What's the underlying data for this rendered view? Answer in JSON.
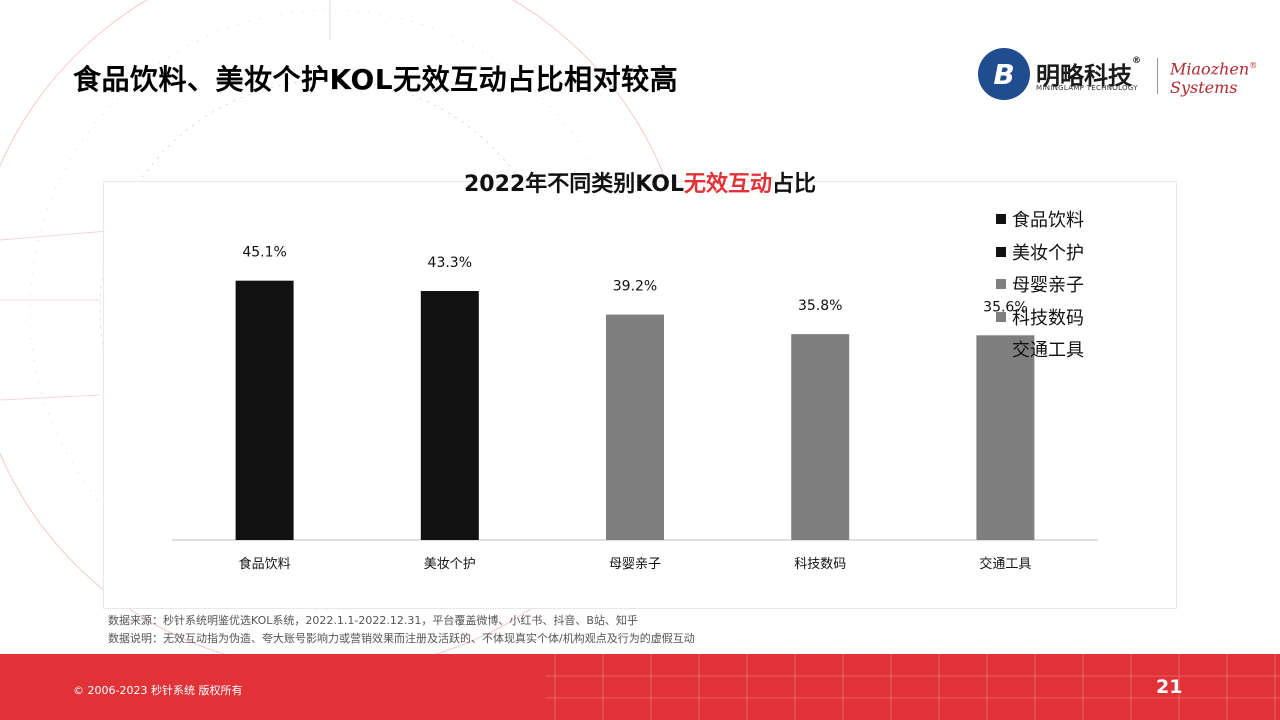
{
  "page": {
    "title": "食品饮料、美妆个护KOL无效互动占比相对较高",
    "page_number": "21",
    "copyright": "© 2006-2023 秒针系统 版权所有"
  },
  "logo": {
    "mark": "B",
    "cn_name": "明略科技",
    "en_name": "MININGLAMP TECHNOLOGY",
    "partner_line1": "Miaozhen",
    "partner_line2": "Systems"
  },
  "chart_title": {
    "prefix": "2022年不同类别KOL",
    "highlight": "无效互动",
    "suffix": "占比",
    "highlight_color": "#e03237"
  },
  "chart_data": {
    "type": "bar",
    "title": "2022年不同类别KOL无效互动占比",
    "categories": [
      "食品饮料",
      "美妆个护",
      "母婴亲子",
      "科技数码",
      "交通工具"
    ],
    "values": [
      45.1,
      43.3,
      39.2,
      35.8,
      35.6
    ],
    "value_labels": [
      "45.1%",
      "43.3%",
      "39.2%",
      "35.8%",
      "35.6%"
    ],
    "colors": [
      "#111111",
      "#111111",
      "#7f7f7f",
      "#7f7f7f",
      "#7f7f7f"
    ],
    "ylim": [
      0,
      60
    ],
    "grid": false,
    "legend_position": "top-right",
    "legend": [
      {
        "label": "食品饮料",
        "color": "#111111"
      },
      {
        "label": "美妆个护",
        "color": "#111111"
      },
      {
        "label": "母婴亲子",
        "color": "#7f7f7f"
      },
      {
        "label": "科技数码",
        "color": "#7f7f7f"
      },
      {
        "label": "交通工具",
        "color": "#7f7f7f"
      }
    ]
  },
  "footnotes": {
    "source": "数据来源：秒针系统明鉴优选KOL系统，2022.1.1-2022.12.31，平台覆盖微博、小红书、抖音、B站、知乎",
    "note": "数据说明：无效互动指为伪造、夸大账号影响力或营销效果而注册及活跃的、不体现真实个体/机构观点及行为的虚假互动"
  },
  "colors": {
    "accent": "#e03237",
    "dark_bar": "#111111",
    "grey_bar": "#7f7f7f"
  }
}
